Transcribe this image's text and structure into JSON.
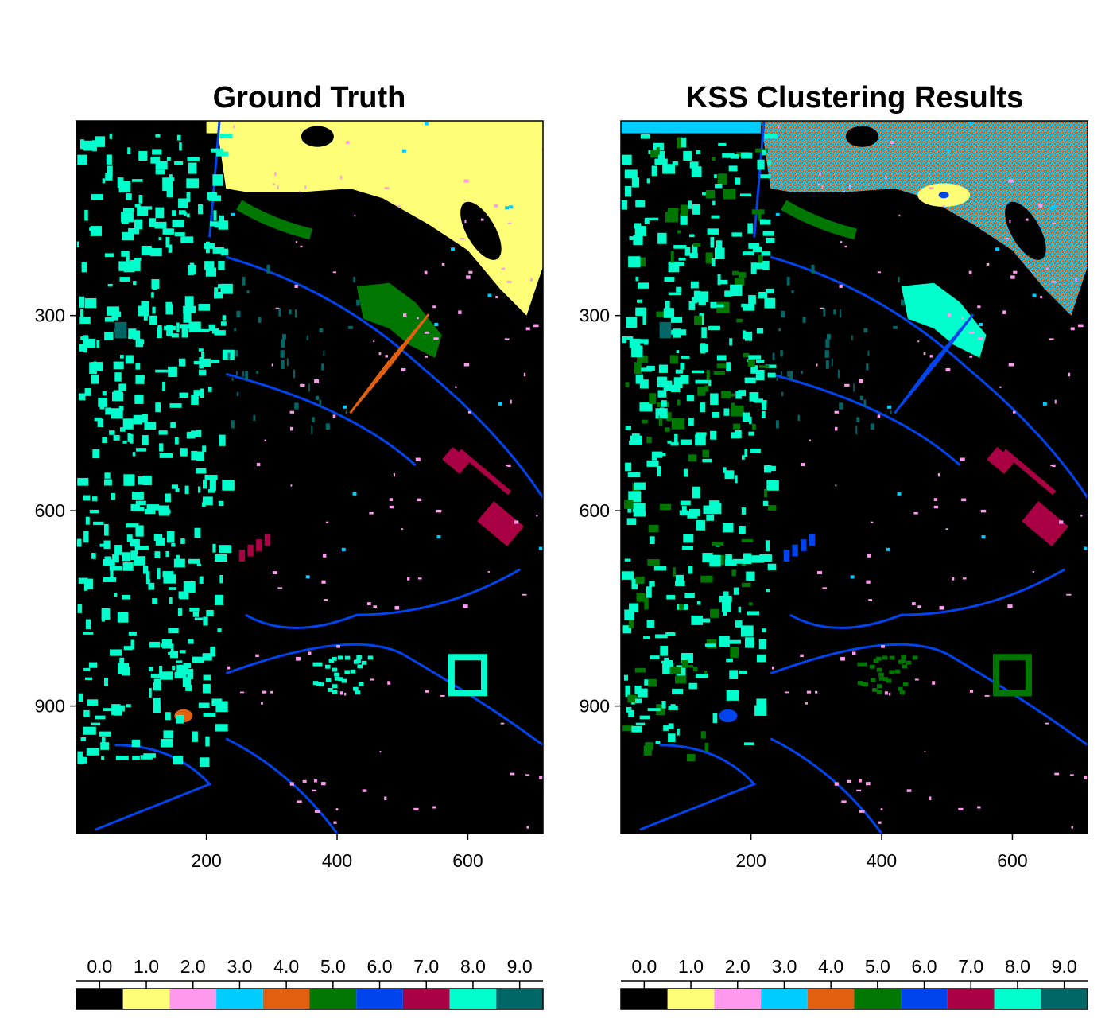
{
  "chart_data": [
    {
      "type": "heatmap",
      "title": "Ground Truth",
      "xlabel": "",
      "ylabel": "",
      "xlim": [
        1,
        715
      ],
      "ylim": [
        1096,
        1
      ],
      "xticks": [
        "200",
        "400",
        "600"
      ],
      "yticks": [
        "300",
        "600",
        "900"
      ],
      "legend": "colorbar-bottom",
      "colorbar_ticks": [
        "0.0",
        "1.0",
        "2.0",
        "3.0",
        "4.0",
        "5.0",
        "6.0",
        "7.0",
        "8.0",
        "9.0"
      ],
      "classes": [
        0,
        1,
        2,
        3,
        4,
        5,
        6,
        7,
        8,
        9
      ]
    },
    {
      "type": "heatmap",
      "title": "KSS Clustering Results",
      "xlabel": "",
      "ylabel": "",
      "xlim": [
        1,
        715
      ],
      "ylim": [
        1096,
        1
      ],
      "xticks": [
        "200",
        "400",
        "600"
      ],
      "yticks": [
        "300",
        "600",
        "900"
      ],
      "legend": "colorbar-bottom",
      "colorbar_ticks": [
        "0.0",
        "1.0",
        "2.0",
        "3.0",
        "4.0",
        "5.0",
        "6.0",
        "7.0",
        "8.0",
        "9.0"
      ],
      "classes": [
        0,
        1,
        2,
        3,
        4,
        5,
        6,
        7,
        8,
        9
      ]
    }
  ],
  "palette": [
    "#000000",
    "#ffff77",
    "#ff99ee",
    "#00ccff",
    "#e06010",
    "#007700",
    "#0044ee",
    "#aa0044",
    "#00ffcc",
    "#006666"
  ]
}
